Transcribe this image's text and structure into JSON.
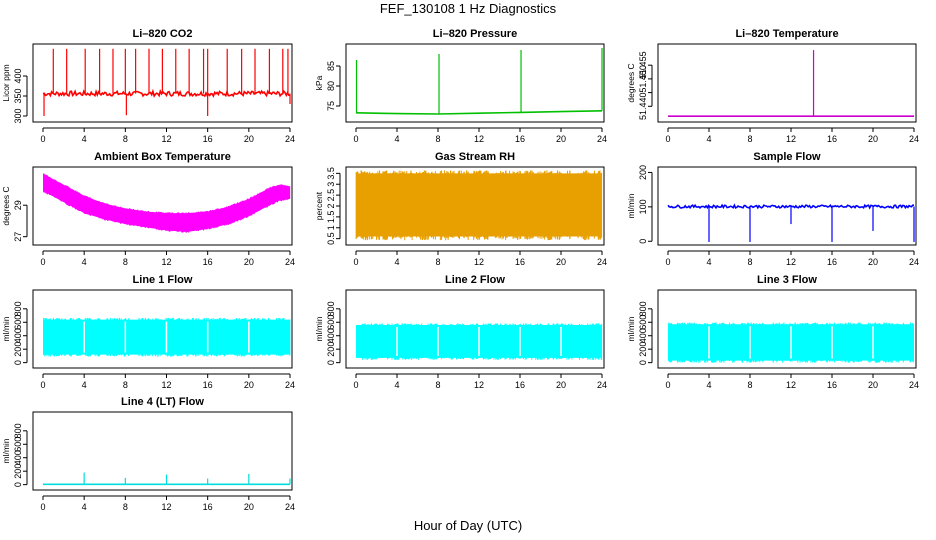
{
  "page": {
    "title": "FEF_130108  1 Hz Diagnostics",
    "xlabel": "Hour of Day (UTC)"
  },
  "chart_data": [
    {
      "type": "line",
      "title": "Li–820 CO2",
      "ylabel": "Licor ppm",
      "xlabel": "",
      "color": "#ff0000",
      "xlim": [
        0,
        24
      ],
      "ylim": [
        290,
        475
      ],
      "xticks": [
        "0",
        "4",
        "8",
        "12",
        "16",
        "20",
        "24"
      ],
      "yticks": [
        300,
        350,
        400
      ],
      "baseline": 356,
      "noise": 6,
      "spikes": [
        [
          1.0,
          468
        ],
        [
          2.3,
          468
        ],
        [
          4.1,
          468
        ],
        [
          5.5,
          468
        ],
        [
          6.8,
          468
        ],
        [
          8.0,
          468
        ],
        [
          9.0,
          468
        ],
        [
          10.3,
          468
        ],
        [
          11.6,
          468
        ],
        [
          12.9,
          468
        ],
        [
          14.2,
          468
        ],
        [
          15.6,
          468
        ],
        [
          16.0,
          468
        ],
        [
          17.9,
          468
        ],
        [
          19.3,
          468
        ],
        [
          20.6,
          468
        ],
        [
          22.0,
          468
        ],
        [
          23.3,
          468
        ],
        [
          23.8,
          468
        ]
      ],
      "dips": [
        [
          0.1,
          300
        ],
        [
          8.1,
          302
        ],
        [
          16.0,
          300
        ],
        [
          24.0,
          330
        ]
      ]
    },
    {
      "type": "line",
      "title": "Li–820 Pressure",
      "ylabel": "kPa",
      "xlabel": "",
      "color": "#00c000",
      "xlim": [
        0,
        24
      ],
      "ylim": [
        71.5,
        90
      ],
      "xticks": [
        "0",
        "4",
        "8",
        "12",
        "16",
        "20",
        "24"
      ],
      "yticks": [
        75,
        80,
        85
      ],
      "series": [
        {
          "x": [
            0,
            4,
            8,
            12,
            16,
            20,
            24
          ],
          "y": [
            73.3,
            73.1,
            73.0,
            73.2,
            73.4,
            73.6,
            73.8
          ]
        }
      ],
      "spikes": [
        [
          0.05,
          86.5
        ],
        [
          8.1,
          88
        ],
        [
          16.1,
          89
        ],
        [
          24.0,
          89.5
        ]
      ]
    },
    {
      "type": "line",
      "title": "Li–820 Temperature",
      "ylabel": "degrees C",
      "xlabel": "",
      "color": "#cc00cc",
      "xlim": [
        0,
        24
      ],
      "ylim": [
        51.435,
        51.462
      ],
      "xticks": [
        "0",
        "4",
        "8",
        "12",
        "16",
        "20",
        "24"
      ],
      "yticks": [
        51.44,
        51.445,
        51.45,
        51.455
      ],
      "ytick_labels": [
        "51.440",
        "",
        "51.450",
        "51.455"
      ],
      "baseline": 51.4364,
      "spikes": [
        [
          14.2,
          51.4605
        ]
      ]
    },
    {
      "type": "band",
      "title": "Ambient Box Temperature",
      "ylabel": "degrees C",
      "xlabel": "",
      "color": "#ff00ff",
      "xlim": [
        0,
        24
      ],
      "ylim": [
        26.6,
        31.3
      ],
      "xticks": [
        "0",
        "4",
        "8",
        "12",
        "16",
        "20",
        "24"
      ],
      "yticks": [
        27,
        29
      ],
      "upper": {
        "x": [
          0,
          2,
          4,
          6,
          8,
          10,
          12,
          14,
          16,
          18,
          20,
          22,
          23,
          24
        ],
        "y": [
          31.0,
          30.3,
          29.6,
          29.1,
          28.8,
          28.6,
          28.5,
          28.5,
          28.6,
          28.9,
          29.4,
          30.1,
          30.3,
          30.2
        ]
      },
      "lower": {
        "x": [
          0,
          2,
          4,
          6,
          8,
          10,
          12,
          14,
          16,
          18,
          20,
          22,
          23,
          24
        ],
        "y": [
          29.9,
          29.2,
          28.5,
          28.1,
          27.8,
          27.6,
          27.4,
          27.3,
          27.5,
          27.8,
          28.3,
          29.0,
          29.3,
          29.4
        ]
      }
    },
    {
      "type": "band",
      "title": "Gas Stream RH",
      "ylabel": "percent",
      "xlabel": "",
      "color": "#e8a000",
      "xlim": [
        0,
        24
      ],
      "ylim": [
        0.3,
        3.7
      ],
      "xticks": [
        "0",
        "4",
        "8",
        "12",
        "16",
        "20",
        "24"
      ],
      "yticks": [
        0.5,
        1.0,
        1.5,
        2.0,
        2.5,
        3.0,
        3.5
      ],
      "upper": {
        "x": [
          0,
          24
        ],
        "y": [
          3.5,
          3.5
        ]
      },
      "lower": {
        "x": [
          0,
          24
        ],
        "y": [
          0.6,
          0.6
        ]
      }
    },
    {
      "type": "line",
      "title": "Sample Flow",
      "ylabel": "ml/min",
      "xlabel": "",
      "color": "#0000ff",
      "xlim": [
        0,
        24
      ],
      "ylim": [
        -5,
        210
      ],
      "xticks": [
        "0",
        "4",
        "8",
        "12",
        "16",
        "20",
        "24"
      ],
      "yticks": [
        0,
        100,
        200
      ],
      "baseline": 101,
      "noise": 4,
      "dips": [
        [
          4.0,
          -2
        ],
        [
          8.0,
          -2
        ],
        [
          12.0,
          50
        ],
        [
          16.0,
          -2
        ],
        [
          20.0,
          30
        ],
        [
          24.0,
          -2
        ]
      ]
    },
    {
      "type": "band",
      "title": "Line 1 Flow",
      "ylabel": "ml/min",
      "xlabel": "",
      "color": "#00ffff",
      "xlim": [
        0,
        24
      ],
      "ylim": [
        -50,
        1050
      ],
      "xticks": [
        "0",
        "4",
        "8",
        "12",
        "16",
        "20",
        "24"
      ],
      "yticks": [
        0,
        200,
        400,
        600,
        800
      ],
      "upper": {
        "x": [
          0,
          24
        ],
        "y": [
          640,
          640
        ]
      },
      "lower": {
        "x": [
          0,
          24
        ],
        "y": [
          120,
          120
        ]
      },
      "gaps": [
        4,
        8,
        12,
        16,
        20
      ]
    },
    {
      "type": "band",
      "title": "Line 2 Flow",
      "ylabel": "ml/min",
      "xlabel": "",
      "color": "#00ffff",
      "xlim": [
        0,
        24
      ],
      "ylim": [
        -50,
        1050
      ],
      "xticks": [
        "0",
        "4",
        "8",
        "12",
        "16",
        "20",
        "24"
      ],
      "yticks": [
        0,
        200,
        400,
        600,
        800
      ],
      "upper": {
        "x": [
          0,
          24
        ],
        "y": [
          560,
          560
        ]
      },
      "lower": {
        "x": [
          0,
          24
        ],
        "y": [
          70,
          70
        ]
      },
      "gaps": [
        4,
        8,
        12,
        16,
        20
      ]
    },
    {
      "type": "band",
      "title": "Line 3 Flow",
      "ylabel": "ml/min",
      "xlabel": "",
      "color": "#00ffff",
      "xlim": [
        0,
        24
      ],
      "ylim": [
        -50,
        1050
      ],
      "xticks": [
        "0",
        "4",
        "8",
        "12",
        "16",
        "20",
        "24"
      ],
      "yticks": [
        0,
        200,
        400,
        600,
        800
      ],
      "upper": {
        "x": [
          0,
          24
        ],
        "y": [
          570,
          570
        ]
      },
      "lower": {
        "x": [
          0,
          24
        ],
        "y": [
          30,
          30
        ]
      },
      "gaps": [
        4,
        8,
        12,
        16,
        20
      ]
    },
    {
      "type": "line",
      "title": "Line 4 (LT) Flow",
      "ylabel": "ml/min",
      "xlabel": "",
      "color": "#00dddd",
      "xlim": [
        0,
        24
      ],
      "ylim": [
        -50,
        1050
      ],
      "xticks": [
        "0",
        "4",
        "8",
        "12",
        "16",
        "20",
        "24"
      ],
      "yticks": [
        0,
        200,
        400,
        600,
        800
      ],
      "baseline": 5,
      "noise": 0,
      "spikes": [
        [
          4.0,
          180
        ],
        [
          8.0,
          100
        ],
        [
          12.0,
          150
        ],
        [
          16.0,
          90
        ],
        [
          20.0,
          160
        ],
        [
          24.0,
          90
        ]
      ]
    }
  ]
}
